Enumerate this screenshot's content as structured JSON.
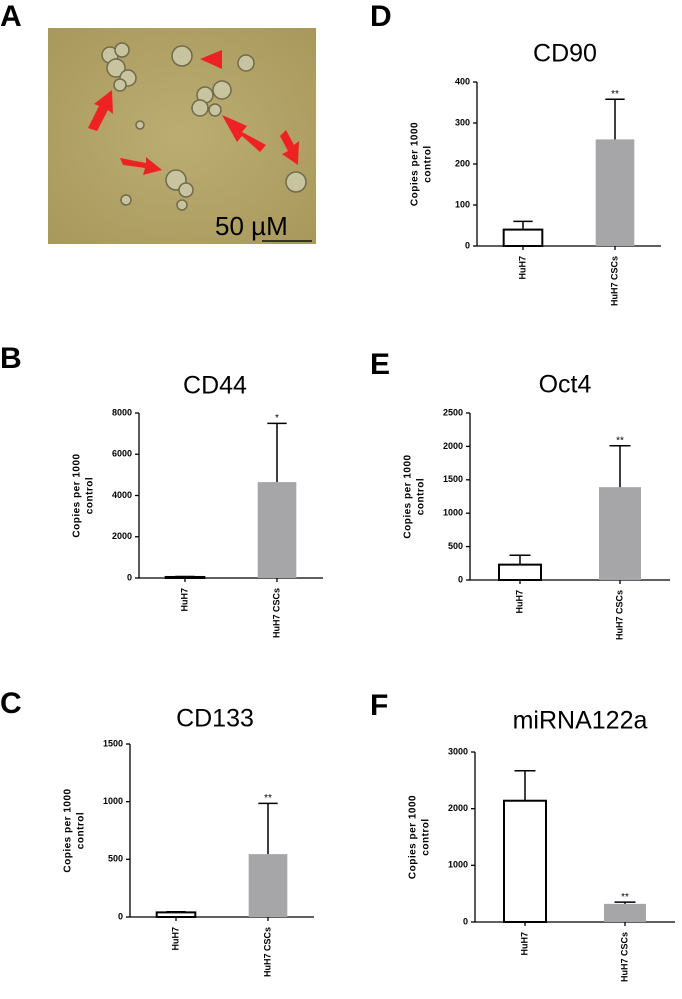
{
  "image": {
    "panel_label": "A",
    "scale_label": "50 µM"
  },
  "chart_data": [
    {
      "type": "bar",
      "panel_label": "D",
      "title": "CD90",
      "ylabel_lines": [
        "Copies per 1000",
        "control"
      ],
      "categories": [
        "HuH7",
        "HuH7 CSCs"
      ],
      "values": [
        40,
        260
      ],
      "errors": [
        20,
        98
      ],
      "significance": [
        null,
        "**"
      ],
      "colors": [
        "#ffffff",
        "#a6a6a8"
      ],
      "ylim": [
        0,
        400
      ],
      "yticks": [
        0,
        100,
        200,
        300,
        400
      ]
    },
    {
      "type": "bar",
      "panel_label": "B",
      "title": "CD44",
      "ylabel_lines": [
        "Copies per 1000",
        "control"
      ],
      "categories": [
        "HuH7",
        "HuH7 CSCs"
      ],
      "values": [
        50,
        4650
      ],
      "errors": [
        20,
        2850
      ],
      "significance": [
        null,
        "*"
      ],
      "colors": [
        "#ffffff",
        "#a6a6a8"
      ],
      "ylim": [
        0,
        8000
      ],
      "yticks": [
        0,
        2000,
        4000,
        6000,
        8000
      ]
    },
    {
      "type": "bar",
      "panel_label": "E",
      "title": "Oct4",
      "ylabel_lines": [
        "Copies per 1000",
        "control"
      ],
      "categories": [
        "HuH7",
        "HuH7 CSCs"
      ],
      "values": [
        230,
        1390
      ],
      "errors": [
        140,
        620
      ],
      "significance": [
        null,
        "**"
      ],
      "colors": [
        "#ffffff",
        "#a6a6a8"
      ],
      "ylim": [
        0,
        2500
      ],
      "yticks": [
        0,
        500,
        1000,
        1500,
        2000,
        2500
      ]
    },
    {
      "type": "bar",
      "panel_label": "C",
      "title": "CD133",
      "ylabel_lines": [
        "Copies per 1000",
        "control"
      ],
      "categories": [
        "HuH7",
        "HuH7 CSCs"
      ],
      "values": [
        40,
        545
      ],
      "errors": [
        5,
        440
      ],
      "significance": [
        null,
        "**"
      ],
      "colors": [
        "#ffffff",
        "#a6a6a8"
      ],
      "ylim": [
        0,
        1500
      ],
      "yticks": [
        0,
        500,
        1000,
        1500
      ]
    },
    {
      "type": "bar",
      "panel_label": "F",
      "title": "miRNA122a",
      "ylabel_lines": [
        "Copies per 1000",
        "control"
      ],
      "categories": [
        "HuH7",
        "HuH7 CSCs"
      ],
      "values": [
        2140,
        320
      ],
      "errors": [
        530,
        30
      ],
      "significance": [
        null,
        "**"
      ],
      "colors": [
        "#ffffff",
        "#a6a6a8"
      ],
      "ylim": [
        0,
        3000
      ],
      "yticks": [
        0,
        1000,
        2000,
        3000
      ]
    }
  ]
}
